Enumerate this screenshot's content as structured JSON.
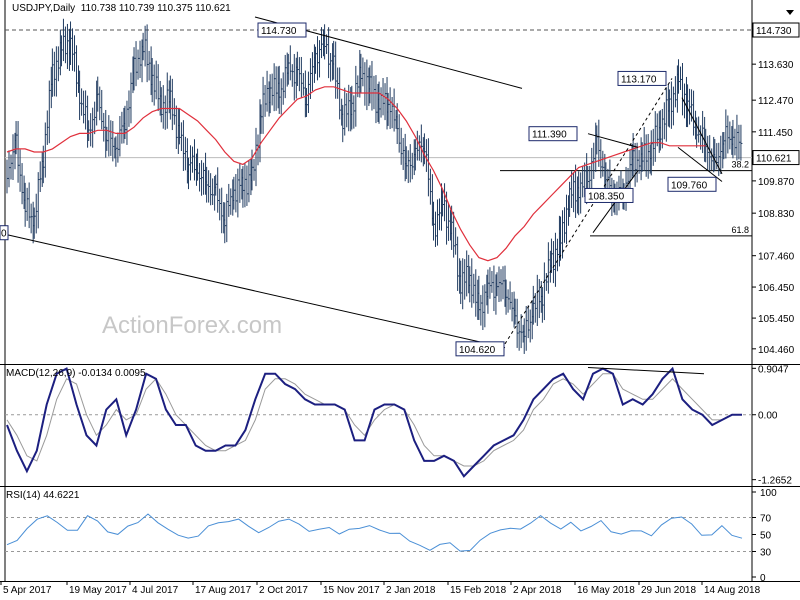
{
  "colors": {
    "price_bar": "#1f3a5f",
    "ma": "#e0303c",
    "macd": "#1c1f80",
    "signal": "#9a9a9a",
    "rsi": "#4a8fd6",
    "box_border": "#1c2a6b",
    "axis": "#000000"
  },
  "header": {
    "symbol": "USDJPY,Daily",
    "ohlc": "110.738 110.739 110.375 110.621"
  },
  "watermark": "ActionForex.com",
  "chart_data": [
    {
      "type": "line",
      "title": "USDJPY,Daily",
      "name": "price",
      "ylim": [
        104.1,
        115.6
      ],
      "y_ticks": [
        "114.730",
        "113.630",
        "112.470",
        "111.450",
        "110.621",
        "109.870",
        "108.830",
        "107.460",
        "106.450",
        "105.450",
        "104.460"
      ],
      "current_price": "110.621",
      "hline_label": "114.730",
      "annotations": [
        "114.730",
        "113.170",
        "111.390",
        "109.760",
        "108.350",
        "104.620"
      ],
      "fib_levels": [
        {
          "label": "38.2",
          "price": 110.2
        },
        {
          "label": "61.8",
          "price": 108.1
        }
      ],
      "left_cut_label": "0",
      "series": [
        {
          "name": "close",
          "values": [
            110.2,
            111,
            109,
            108.6,
            110.7,
            113.3,
            114.1,
            114.4,
            112.6,
            111.5,
            112.4,
            111.3,
            110.9,
            111.8,
            113.4,
            114.2,
            113.2,
            112.3,
            112.5,
            111.2,
            110.5,
            110.2,
            109.8,
            109.4,
            108.7,
            109.5,
            109.8,
            109.9,
            112.1,
            112.9,
            112.7,
            113.5,
            113.3,
            112.6,
            113.9,
            114.3,
            113.5,
            111.9,
            112.3,
            113.3,
            112.9,
            112.3,
            112.5,
            111.5,
            110.3,
            110.7,
            111.2,
            108.3,
            109.2,
            108.2,
            106.6,
            106.8,
            105.7,
            106.4,
            106.5,
            106.4,
            105.3,
            104.9,
            105.7,
            106.3,
            107.3,
            107.9,
            109.4,
            109.6,
            109.9,
            111.1,
            109.9,
            109.3,
            109.6,
            110.5,
            110.6,
            110.9,
            111.6,
            112.3,
            113,
            112.4,
            111.5,
            111.1,
            110.3,
            111.3,
            111.2,
            111
          ]
        },
        {
          "name": "ma",
          "values": [
            110.8,
            110.9,
            110.9,
            110.8,
            110.8,
            110.9,
            111.1,
            111.3,
            111.4,
            111.4,
            111.5,
            111.5,
            111.4,
            111.4,
            111.6,
            111.9,
            112.1,
            112.2,
            112.2,
            112.2,
            112,
            111.8,
            111.5,
            111.2,
            110.8,
            110.5,
            110.4,
            110.6,
            111.1,
            111.5,
            111.9,
            112.2,
            112.5,
            112.6,
            112.8,
            112.9,
            112.9,
            112.8,
            112.7,
            112.7,
            112.7,
            112.7,
            112.5,
            112.2,
            111.8,
            111.3,
            110.7,
            110.2,
            109.6,
            108.9,
            108.3,
            107.8,
            107.4,
            107.3,
            107.4,
            107.7,
            108.1,
            108.4,
            108.8,
            109.1,
            109.4,
            109.7,
            110,
            110.3,
            110.4,
            110.5,
            110.6,
            110.7,
            110.8,
            110.9,
            111,
            111.1,
            111.1,
            111,
            111,
            111,
            111,
            111
          ]
        }
      ]
    },
    {
      "type": "line",
      "title": "MACD(12,26,9) -0.0134 0.0095",
      "ylim": [
        -1.35,
        0.95
      ],
      "y_ticks": [
        "0.9047",
        "0.00",
        "-1.2652"
      ],
      "series": [
        {
          "name": "macd",
          "values": [
            -0.2,
            -0.7,
            -1.1,
            -0.7,
            0.2,
            0.8,
            0.9,
            0.2,
            -0.4,
            -0.6,
            0.1,
            0.3,
            -0.4,
            0.1,
            0.8,
            0.7,
            0.1,
            -0.2,
            -0.2,
            -0.6,
            -0.7,
            -0.7,
            -0.6,
            -0.6,
            -0.3,
            0.3,
            0.8,
            0.8,
            0.6,
            0.5,
            0.3,
            0.2,
            0.2,
            0.2,
            0.1,
            -0.5,
            -0.5,
            0.1,
            0.2,
            0.2,
            0.1,
            -0.5,
            -0.9,
            -0.9,
            -0.8,
            -0.9,
            -1.2,
            -1.0,
            -0.8,
            -0.6,
            -0.5,
            -0.4,
            -0.1,
            0.3,
            0.5,
            0.7,
            0.8,
            0.5,
            0.3,
            0.8,
            0.9,
            0.8,
            0.2,
            0.3,
            0.2,
            0.4,
            0.7,
            0.9,
            0.3,
            0.1,
            0.0,
            -0.2,
            -0.1,
            0.0,
            0.0
          ]
        },
        {
          "name": "signal",
          "values": [
            -0.1,
            -0.4,
            -0.8,
            -0.9,
            -0.4,
            0.3,
            0.7,
            0.6,
            0.0,
            -0.4,
            -0.2,
            0.1,
            -0.1,
            0.0,
            0.5,
            0.7,
            0.4,
            0.0,
            -0.2,
            -0.4,
            -0.6,
            -0.7,
            -0.7,
            -0.6,
            -0.5,
            -0.1,
            0.5,
            0.7,
            0.7,
            0.6,
            0.4,
            0.3,
            0.2,
            0.2,
            0.1,
            -0.2,
            -0.4,
            -0.1,
            0.1,
            0.2,
            0.1,
            -0.2,
            -0.6,
            -0.8,
            -0.8,
            -0.9,
            -1.0,
            -1.0,
            -0.9,
            -0.7,
            -0.6,
            -0.5,
            -0.3,
            0.1,
            0.3,
            0.6,
            0.7,
            0.6,
            0.4,
            0.6,
            0.8,
            0.8,
            0.5,
            0.4,
            0.3,
            0.3,
            0.5,
            0.7,
            0.5,
            0.3,
            0.1,
            -0.1,
            -0.1,
            0.0,
            0.0
          ]
        }
      ],
      "trendline_label": ""
    },
    {
      "type": "line",
      "title": "RSI(14) 44.6221",
      "ylim": [
        0,
        100
      ],
      "y_ticks": [
        "100",
        "70",
        "50",
        "30",
        "0"
      ],
      "levels": [
        70,
        30
      ],
      "series": [
        {
          "name": "rsi",
          "values": [
            38,
            45,
            55,
            68,
            74,
            62,
            55,
            57,
            70,
            66,
            55,
            48,
            60,
            66,
            72,
            64,
            58,
            47,
            46,
            50,
            58,
            64,
            67,
            66,
            60,
            54,
            56,
            66,
            70,
            60,
            54,
            58,
            56,
            51,
            58,
            55,
            61,
            57,
            49,
            52,
            44,
            35,
            32,
            40,
            38,
            31,
            33,
            41,
            52,
            57,
            55,
            57,
            65,
            70,
            64,
            58,
            62,
            55,
            61,
            64,
            54,
            52,
            52,
            55,
            50,
            59,
            70,
            72,
            60,
            50,
            51,
            58,
            50,
            47
          ]
        }
      ]
    }
  ],
  "x_labels": [
    "5 Apr 2017",
    "19 May 2017",
    "4 Jul 2017",
    "17 Aug 2017",
    "2 Oct 2017",
    "15 Nov 2017",
    "2 Jan 2018",
    "15 Feb 2018",
    "2 Apr 2018",
    "16 May 2018",
    "29 Jun 2018",
    "14 Aug 2018"
  ]
}
